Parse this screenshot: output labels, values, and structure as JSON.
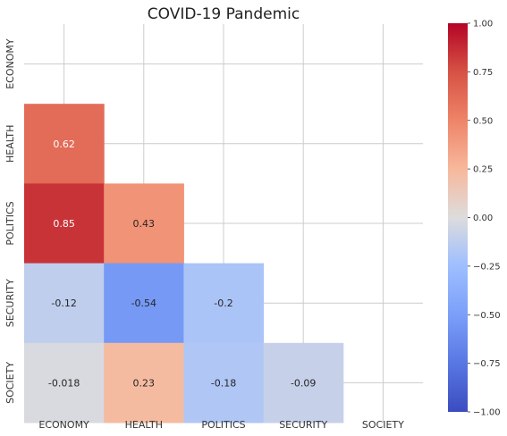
{
  "chart_data": {
    "type": "heatmap",
    "title": "COVID-19 Pandemic",
    "categories": [
      "ECONOMY",
      "HEALTH",
      "POLITICS",
      "SECURITY",
      "SOCIETY"
    ],
    "mask": "upper-triangle-including-diagonal",
    "cells": [
      {
        "row": "HEALTH",
        "col": "ECONOMY",
        "value": 0.62,
        "label": "0.62"
      },
      {
        "row": "POLITICS",
        "col": "ECONOMY",
        "value": 0.85,
        "label": "0.85"
      },
      {
        "row": "POLITICS",
        "col": "HEALTH",
        "value": 0.43,
        "label": "0.43"
      },
      {
        "row": "SECURITY",
        "col": "ECONOMY",
        "value": -0.12,
        "label": "-0.12"
      },
      {
        "row": "SECURITY",
        "col": "HEALTH",
        "value": -0.54,
        "label": "-0.54"
      },
      {
        "row": "SECURITY",
        "col": "POLITICS",
        "value": -0.2,
        "label": "-0.2"
      },
      {
        "row": "SOCIETY",
        "col": "ECONOMY",
        "value": -0.018,
        "label": "-0.018"
      },
      {
        "row": "SOCIETY",
        "col": "HEALTH",
        "value": 0.23,
        "label": "0.23"
      },
      {
        "row": "SOCIETY",
        "col": "POLITICS",
        "value": -0.18,
        "label": "-0.18"
      },
      {
        "row": "SOCIETY",
        "col": "SECURITY",
        "value": -0.09,
        "label": "-0.09"
      }
    ],
    "colorbar": {
      "colormap": "coolwarm",
      "range": [
        -1,
        1
      ],
      "ticks": [
        -1,
        -0.75,
        -0.5,
        -0.25,
        0,
        0.25,
        0.5,
        0.75,
        1
      ],
      "tick_labels": [
        "−1.00",
        "−0.75",
        "−0.50",
        "−0.25",
        "0.00",
        "0.25",
        "0.50",
        "0.75",
        "1.00"
      ]
    },
    "grid": true
  }
}
